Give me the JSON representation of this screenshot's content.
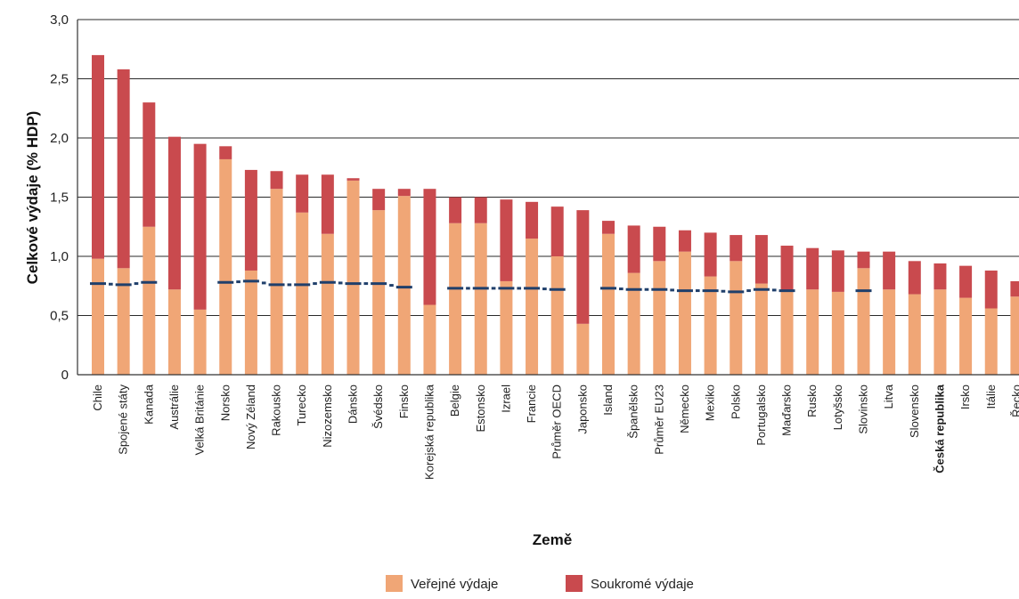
{
  "chart_data": {
    "type": "bar",
    "stacked": true,
    "xlabel": "Země",
    "ylabel": "Celkové výdaje (% HDP)",
    "ylim": [
      0,
      3.0
    ],
    "ytick_labels": [
      "0",
      "0,5",
      "1,0",
      "1,5",
      "2,0",
      "2,5",
      "3,0"
    ],
    "yticks": [
      0,
      0.5,
      1.0,
      1.5,
      2.0,
      2.5,
      3.0
    ],
    "grid": true,
    "legend_position": "bottom",
    "highlight_category": "Česká republika",
    "categories": [
      "Chile",
      "Spojené státy",
      "Kanada",
      "Austrálie",
      "Velká Británie",
      "Norsko",
      "Nový Zéland",
      "Rakousko",
      "Turecko",
      "Nizozemsko",
      "Dánsko",
      "Švédsko",
      "Finsko",
      "Korejská republika",
      "Belgie",
      "Estonsko",
      "Izrael",
      "Francie",
      "Průměr OECD",
      "Japonsko",
      "Island",
      "Španělsko",
      "Průměr EU23",
      "Německo",
      "Mexiko",
      "Polsko",
      "Portugalsko",
      "Maďarsko",
      "Rusko",
      "Lotyšsko",
      "Slovinsko",
      "Litva",
      "Slovensko",
      "Česká republika",
      "Irsko",
      "Itálie",
      "Řecko"
    ],
    "series": [
      {
        "name": "Veřejné výdaje",
        "color": "#f0a676",
        "values": [
          0.98,
          0.9,
          1.25,
          0.72,
          0.55,
          1.82,
          0.88,
          1.57,
          1.37,
          1.19,
          1.64,
          1.39,
          1.51,
          0.59,
          1.28,
          1.28,
          0.79,
          1.15,
          1.0,
          0.43,
          1.19,
          0.86,
          0.96,
          1.04,
          0.83,
          0.96,
          0.77,
          0.71,
          0.72,
          0.7,
          0.9,
          0.72,
          0.68,
          0.72,
          0.65,
          0.56,
          0.66
        ]
      },
      {
        "name": "Soukromé výdaje",
        "color": "#c94a4e",
        "values": [
          1.72,
          1.68,
          1.05,
          1.29,
          1.4,
          0.11,
          0.85,
          0.15,
          0.32,
          0.5,
          0.02,
          0.18,
          0.06,
          0.98,
          0.22,
          0.22,
          0.69,
          0.31,
          0.42,
          0.96,
          0.11,
          0.4,
          0.29,
          0.18,
          0.37,
          0.22,
          0.41,
          0.38,
          0.35,
          0.35,
          0.14,
          0.32,
          0.28,
          0.22,
          0.27,
          0.32,
          0.13
        ]
      }
    ],
    "reference_line": {
      "style": "dashed",
      "color": "#1f3f6b",
      "values": [
        0.77,
        0.76,
        0.78,
        null,
        null,
        0.78,
        0.79,
        0.76,
        0.76,
        0.78,
        0.77,
        0.77,
        0.74,
        null,
        0.73,
        0.73,
        0.73,
        0.73,
        0.72,
        null,
        0.73,
        0.72,
        0.72,
        0.71,
        0.71,
        0.7,
        0.72,
        0.71,
        null,
        null,
        0.71,
        null,
        null,
        null,
        null,
        null,
        null
      ]
    }
  }
}
